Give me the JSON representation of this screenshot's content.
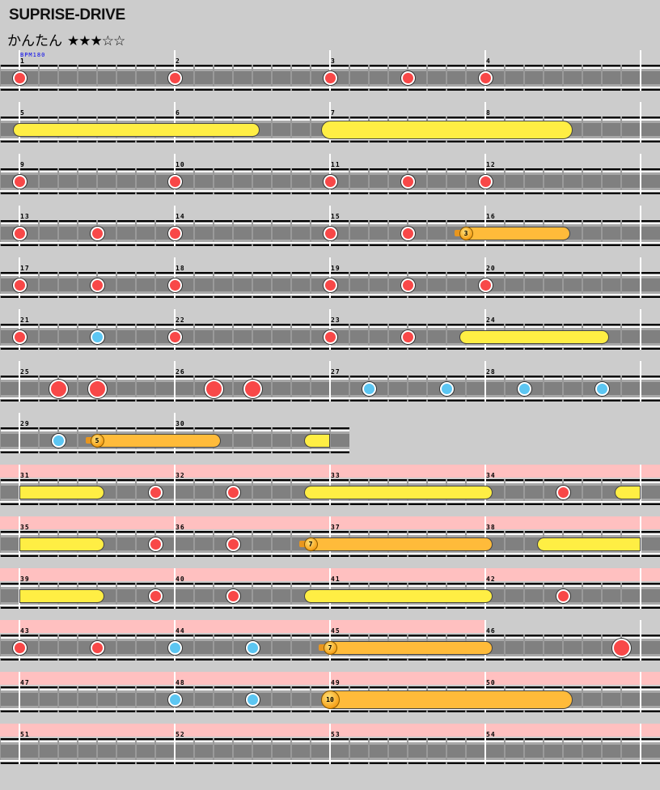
{
  "song": {
    "title": "SUPRISE-DRIVE",
    "difficulty": "かんたん",
    "stars": "★★★☆☆",
    "star_level": 3,
    "star_max": 5,
    "bpm_label": "BPM180"
  },
  "colors": {
    "don": "#f84848",
    "ka": "#5cc6f2",
    "roll": "#ffee44",
    "balloon": "#ffbb3a",
    "gogo": "#ffc0c0",
    "lane": "#808080",
    "background": "#cccccc"
  },
  "divisions_per_measure": 8,
  "rows": [
    [
      1,
      2,
      3,
      4
    ],
    [
      5,
      6,
      7,
      8
    ],
    [
      9,
      10,
      11,
      12
    ],
    [
      13,
      14,
      15,
      16
    ],
    [
      17,
      18,
      19,
      20
    ],
    [
      21,
      22,
      23,
      24
    ],
    [
      25,
      26,
      27,
      28
    ],
    [
      29,
      30
    ],
    [
      31,
      32,
      33,
      34
    ],
    [
      35,
      36,
      37,
      38
    ],
    [
      39,
      40,
      41,
      42
    ],
    [
      43,
      44,
      45,
      46
    ],
    [
      47,
      48,
      49,
      50
    ],
    [
      51,
      52,
      53,
      54
    ]
  ],
  "gogo_measures": [
    31,
    32,
    33,
    34,
    35,
    36,
    37,
    38,
    39,
    40,
    41,
    42,
    43,
    44,
    45,
    47,
    48,
    49,
    50,
    51,
    52,
    53,
    54
  ],
  "notes": [
    {
      "type": "don",
      "m": 1,
      "p": 0
    },
    {
      "type": "don",
      "m": 2,
      "p": 0
    },
    {
      "type": "don",
      "m": 3,
      "p": 0
    },
    {
      "type": "don",
      "m": 3,
      "p": 4
    },
    {
      "type": "don",
      "m": 4,
      "p": 0
    },
    {
      "type": "roll",
      "m": 5,
      "p": 0,
      "end": [
        6,
        4
      ]
    },
    {
      "type": "big-roll",
      "m": 7,
      "p": 0,
      "end": [
        8,
        4
      ]
    },
    {
      "type": "don",
      "m": 9,
      "p": 0
    },
    {
      "type": "don",
      "m": 10,
      "p": 0
    },
    {
      "type": "don",
      "m": 11,
      "p": 0
    },
    {
      "type": "don",
      "m": 11,
      "p": 4
    },
    {
      "type": "don",
      "m": 12,
      "p": 0
    },
    {
      "type": "don",
      "m": 13,
      "p": 0
    },
    {
      "type": "don",
      "m": 13,
      "p": 4
    },
    {
      "type": "don",
      "m": 14,
      "p": 0
    },
    {
      "type": "don",
      "m": 15,
      "p": 0
    },
    {
      "type": "don",
      "m": 15,
      "p": 4
    },
    {
      "type": "balloon",
      "m": 15,
      "p": 7,
      "end": [
        16,
        4
      ],
      "count": "3"
    },
    {
      "type": "don",
      "m": 17,
      "p": 0
    },
    {
      "type": "don",
      "m": 17,
      "p": 4
    },
    {
      "type": "don",
      "m": 18,
      "p": 0
    },
    {
      "type": "don",
      "m": 19,
      "p": 0
    },
    {
      "type": "don",
      "m": 19,
      "p": 4
    },
    {
      "type": "don",
      "m": 20,
      "p": 0
    },
    {
      "type": "don",
      "m": 21,
      "p": 0
    },
    {
      "type": "ka",
      "m": 21,
      "p": 4
    },
    {
      "type": "don",
      "m": 22,
      "p": 0
    },
    {
      "type": "don",
      "m": 23,
      "p": 0
    },
    {
      "type": "don",
      "m": 23,
      "p": 4
    },
    {
      "type": "roll",
      "m": 23,
      "p": 7,
      "end": [
        24,
        6
      ]
    },
    {
      "type": "big-don",
      "m": 25,
      "p": 2
    },
    {
      "type": "big-don",
      "m": 25,
      "p": 4
    },
    {
      "type": "big-don",
      "m": 26,
      "p": 2
    },
    {
      "type": "big-don",
      "m": 26,
      "p": 4
    },
    {
      "type": "ka",
      "m": 27,
      "p": 2
    },
    {
      "type": "ka",
      "m": 27,
      "p": 6
    },
    {
      "type": "ka",
      "m": 28,
      "p": 2
    },
    {
      "type": "ka",
      "m": 28,
      "p": 6
    },
    {
      "type": "ka",
      "m": 29,
      "p": 2
    },
    {
      "type": "balloon",
      "m": 29,
      "p": 4,
      "end": [
        30,
        2
      ],
      "count": "5"
    },
    {
      "type": "roll",
      "m": 30,
      "p": 7,
      "end": [
        31,
        4
      ]
    },
    {
      "type": "don",
      "m": 31,
      "p": 7
    },
    {
      "type": "don",
      "m": 32,
      "p": 3
    },
    {
      "type": "roll",
      "m": 32,
      "p": 7,
      "end": [
        34,
        0
      ]
    },
    {
      "type": "don",
      "m": 34,
      "p": 4
    },
    {
      "type": "roll",
      "m": 34,
      "p": 7,
      "end": [
        35,
        4
      ]
    },
    {
      "type": "don",
      "m": 35,
      "p": 7
    },
    {
      "type": "don",
      "m": 36,
      "p": 3
    },
    {
      "type": "balloon",
      "m": 36,
      "p": 7,
      "end": [
        38,
        0
      ],
      "count": "7"
    },
    {
      "type": "roll",
      "m": 38,
      "p": 3,
      "end": [
        39,
        4
      ]
    },
    {
      "type": "don",
      "m": 39,
      "p": 7
    },
    {
      "type": "don",
      "m": 40,
      "p": 3
    },
    {
      "type": "roll",
      "m": 40,
      "p": 7,
      "end": [
        42,
        0
      ]
    },
    {
      "type": "don",
      "m": 42,
      "p": 4
    },
    {
      "type": "don",
      "m": 43,
      "p": 0
    },
    {
      "type": "don",
      "m": 43,
      "p": 4
    },
    {
      "type": "ka",
      "m": 44,
      "p": 0
    },
    {
      "type": "ka",
      "m": 44,
      "p": 4
    },
    {
      "type": "balloon",
      "m": 45,
      "p": 0,
      "end": [
        46,
        0
      ],
      "count": "7"
    },
    {
      "type": "big-don",
      "m": 46,
      "p": 7
    },
    {
      "type": "ka",
      "m": 48,
      "p": 0
    },
    {
      "type": "ka",
      "m": 48,
      "p": 4
    },
    {
      "type": "kusudama",
      "m": 49,
      "p": 0,
      "end": [
        50,
        4
      ],
      "count": "10"
    }
  ]
}
